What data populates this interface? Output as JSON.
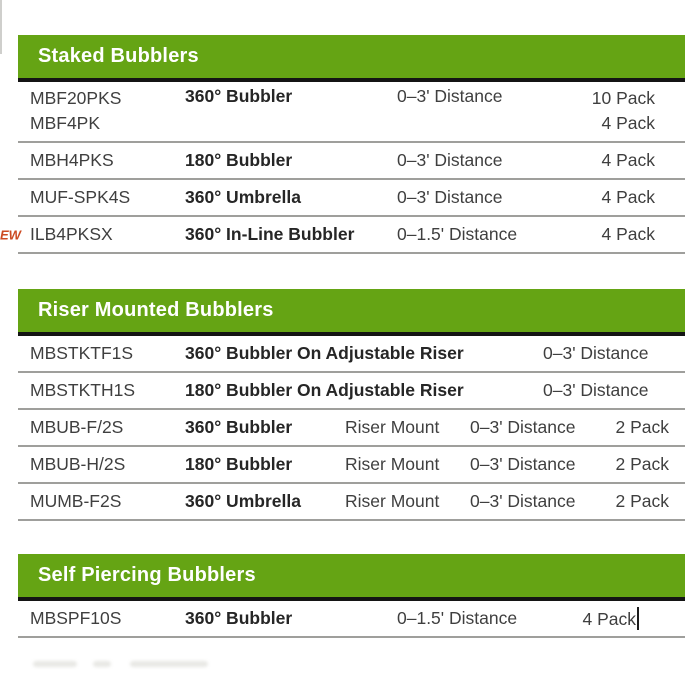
{
  "colors": {
    "header_bg": "#65a414",
    "header_text": "#ffffff",
    "header_rule": "#141414",
    "row_divider": "#9f9f9c",
    "body_text": "#3f3f3f",
    "bold_text": "#262626",
    "new_badge_text": "#cc4a22"
  },
  "sections": [
    {
      "title": "Staked Bubblers",
      "rows": [
        {
          "codes": [
            "MBF20PKS",
            "MBF4PK"
          ],
          "description": "360° Bubbler",
          "distance": "0–3' Distance",
          "packs": [
            "10 Pack",
            "4 Pack"
          ]
        },
        {
          "codes": [
            "MBH4PKS"
          ],
          "description": "180° Bubbler",
          "distance": "0–3' Distance",
          "packs": [
            "4 Pack"
          ]
        },
        {
          "codes": [
            "MUF-SPK4S"
          ],
          "description": "360° Umbrella",
          "distance": "0–3' Distance",
          "packs": [
            "4 Pack"
          ]
        },
        {
          "codes": [
            "ILB4PKSX"
          ],
          "badge": "EW",
          "description": "360° In-Line Bubbler",
          "distance": "0–1.5' Distance",
          "packs": [
            "4 Pack"
          ]
        }
      ]
    },
    {
      "title": "Riser Mounted Bubblers",
      "rows": [
        {
          "codes": [
            "MBSTKTF1S"
          ],
          "description": "360° Bubbler On Adjustable Riser",
          "distance": "0–3' Distance"
        },
        {
          "codes": [
            "MBSTKTH1S"
          ],
          "description": "180° Bubbler On Adjustable Riser",
          "distance": "0–3' Distance"
        },
        {
          "codes": [
            "MBUB-F/2S"
          ],
          "description": "360° Bubbler",
          "mount": "Riser Mount",
          "distance": "0–3' Distance",
          "packs": [
            "2 Pack"
          ]
        },
        {
          "codes": [
            "MBUB-H/2S"
          ],
          "description": "180° Bubbler",
          "mount": "Riser Mount",
          "distance": "0–3' Distance",
          "packs": [
            "2 Pack"
          ]
        },
        {
          "codes": [
            "MUMB-F2S"
          ],
          "description": "360° Umbrella",
          "mount": "Riser Mount",
          "distance": "0–3' Distance",
          "packs": [
            "2 Pack"
          ]
        }
      ]
    },
    {
      "title": "Self Piercing Bubblers",
      "rows": [
        {
          "codes": [
            "MBSPF10S"
          ],
          "description": "360° Bubbler",
          "distance": "0–1.5' Distance",
          "packs": [
            "4 Pack"
          ]
        }
      ]
    }
  ]
}
